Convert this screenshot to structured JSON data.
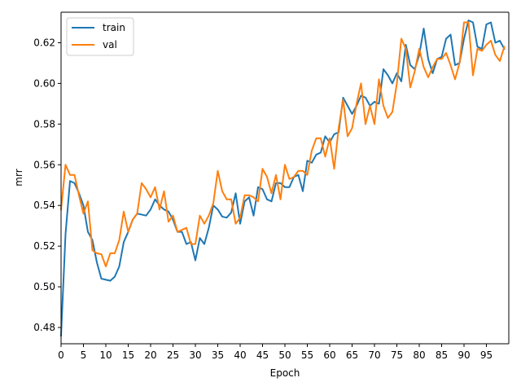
{
  "chart_data": {
    "type": "line",
    "xlabel": "Epoch",
    "ylabel": "mrr",
    "xlim": [
      0,
      100
    ],
    "ylim": [
      0.472,
      0.635
    ],
    "xticks": [
      0,
      5,
      10,
      15,
      20,
      25,
      30,
      35,
      40,
      45,
      50,
      55,
      60,
      65,
      70,
      75,
      80,
      85,
      90,
      95
    ],
    "yticks": [
      0.48,
      0.5,
      0.52,
      0.54,
      0.56,
      0.58,
      0.6,
      0.62
    ],
    "ytick_labels": [
      "0.48",
      "0.50",
      "0.52",
      "0.54",
      "0.56",
      "0.58",
      "0.60",
      "0.62"
    ],
    "grid": false,
    "legend_position": "upper left",
    "x": [
      0,
      1,
      2,
      3,
      4,
      5,
      6,
      7,
      8,
      9,
      10,
      11,
      12,
      13,
      14,
      15,
      16,
      17,
      18,
      19,
      20,
      21,
      22,
      23,
      24,
      25,
      26,
      27,
      28,
      29,
      30,
      31,
      32,
      33,
      34,
      35,
      36,
      37,
      38,
      39,
      40,
      41,
      42,
      43,
      44,
      45,
      46,
      47,
      48,
      49,
      50,
      51,
      52,
      53,
      54,
      55,
      56,
      57,
      58,
      59,
      60,
      61,
      62,
      63,
      64,
      65,
      66,
      67,
      68,
      69,
      70,
      71,
      72,
      73,
      74,
      75,
      76,
      77,
      78,
      79,
      80,
      81,
      82,
      83,
      84,
      85,
      86,
      87,
      88,
      89,
      90,
      91,
      92,
      93,
      94,
      95,
      96,
      97,
      98,
      99
    ],
    "series": [
      {
        "name": "train",
        "color": "#1f77b4",
        "values": [
          0.476,
          0.526,
          0.552,
          0.551,
          0.546,
          0.54,
          0.527,
          0.523,
          0.512,
          0.504,
          0.5035,
          0.503,
          0.505,
          0.51,
          0.522,
          0.527,
          0.533,
          0.536,
          0.5355,
          0.535,
          0.538,
          0.543,
          0.54,
          0.538,
          0.537,
          0.533,
          0.527,
          0.527,
          0.521,
          0.522,
          0.513,
          0.524,
          0.521,
          0.529,
          0.54,
          0.538,
          0.5345,
          0.534,
          0.5365,
          0.546,
          0.531,
          0.542,
          0.544,
          0.535,
          0.549,
          0.548,
          0.543,
          0.542,
          0.551,
          0.551,
          0.549,
          0.549,
          0.554,
          0.555,
          0.547,
          0.562,
          0.561,
          0.565,
          0.566,
          0.574,
          0.571,
          0.575,
          0.576,
          0.593,
          0.589,
          0.585,
          0.589,
          0.594,
          0.593,
          0.589,
          0.591,
          0.59,
          0.607,
          0.604,
          0.6,
          0.605,
          0.601,
          0.619,
          0.609,
          0.607,
          0.614,
          0.627,
          0.612,
          0.605,
          0.612,
          0.613,
          0.622,
          0.624,
          0.609,
          0.61,
          0.622,
          0.631,
          0.63,
          0.618,
          0.617,
          0.629,
          0.63,
          0.62,
          0.621,
          0.617
        ]
      },
      {
        "name": "val",
        "color": "#ff7f0e",
        "values": [
          0.538,
          0.56,
          0.555,
          0.555,
          0.545,
          0.536,
          0.542,
          0.518,
          0.5165,
          0.516,
          0.51,
          0.5165,
          0.5165,
          0.523,
          0.537,
          0.527,
          0.533,
          0.536,
          0.551,
          0.548,
          0.544,
          0.549,
          0.538,
          0.547,
          0.532,
          0.535,
          0.527,
          0.528,
          0.529,
          0.521,
          0.521,
          0.535,
          0.531,
          0.535,
          0.541,
          0.557,
          0.547,
          0.543,
          0.543,
          0.531,
          0.534,
          0.545,
          0.545,
          0.544,
          0.542,
          0.558,
          0.554,
          0.546,
          0.555,
          0.543,
          0.56,
          0.553,
          0.554,
          0.557,
          0.557,
          0.555,
          0.567,
          0.573,
          0.573,
          0.564,
          0.573,
          0.558,
          0.578,
          0.592,
          0.574,
          0.578,
          0.59,
          0.6,
          0.58,
          0.589,
          0.58,
          0.602,
          0.589,
          0.583,
          0.586,
          0.6,
          0.622,
          0.617,
          0.598,
          0.606,
          0.617,
          0.608,
          0.603,
          0.608,
          0.612,
          0.612,
          0.615,
          0.609,
          0.602,
          0.61,
          0.63,
          0.63,
          0.604,
          0.617,
          0.616,
          0.619,
          0.621,
          0.614,
          0.611,
          0.618
        ]
      }
    ]
  }
}
